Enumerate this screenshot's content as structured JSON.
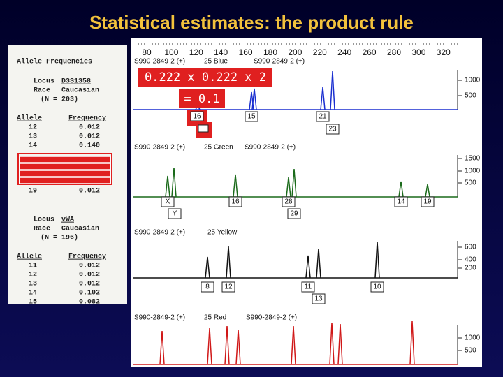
{
  "title": "Statistical estimates: the product rule",
  "frequency_table": {
    "heading": "Allele Frequencies",
    "loci": [
      {
        "locus_label": "Locus",
        "locus": "D3S1358",
        "race_label": "Race",
        "race": "Caucasian",
        "n": "(N = 203)",
        "columns": [
          "Allele",
          "Frequency"
        ],
        "rows": [
          [
            "12",
            "0.012"
          ],
          [
            "13",
            "0.012"
          ],
          [
            "14",
            "0.140"
          ],
          [
            "19",
            "0.012"
          ]
        ]
      },
      {
        "locus_label": "Locus",
        "locus": "vWA",
        "race_label": "Race",
        "race": "Caucasian",
        "n": "(N = 196)",
        "columns": [
          "Allele",
          "Frequency"
        ],
        "rows": [
          [
            "11",
            "0.012"
          ],
          [
            "12",
            "0.012"
          ],
          [
            "13",
            "0.012"
          ],
          [
            "14",
            "0.102"
          ],
          [
            "15",
            "0.082"
          ]
        ]
      }
    ]
  },
  "electropherogram": {
    "size_scale": [
      80,
      100,
      120,
      140,
      160,
      180,
      200,
      220,
      240,
      260,
      280,
      300,
      320
    ],
    "panels": [
      {
        "labels": [
          "S990-2849-2 (+)",
          "25 Blue",
          "S990-2849-2 (+)"
        ],
        "intensity_ticks": [
          1000,
          500
        ],
        "allele_calls": [
          "15",
          "21",
          "23"
        ]
      },
      {
        "labels": [
          "S990-2849-2 (+)",
          "25 Green",
          "S990-2849-2 (+)"
        ],
        "intensity_ticks": [
          1500,
          1000,
          500
        ],
        "allele_calls": [
          "X",
          "Y",
          "16",
          "28",
          "29",
          "14",
          "19"
        ]
      },
      {
        "labels": [
          "S990-2849-2 (+)",
          "25 Yellow"
        ],
        "intensity_ticks": [
          600,
          400,
          200
        ],
        "allele_calls": [
          "8",
          "12",
          "11",
          "13",
          "10"
        ]
      },
      {
        "labels": [
          "S990-2849-2 (+)",
          "25 Red",
          "S990-2849-2 (+)"
        ],
        "intensity_ticks": [
          1000,
          500
        ],
        "allele_calls": []
      }
    ]
  },
  "annotations": {
    "product": "0.222 x 0.222 x 2",
    "result": "= 0.1",
    "highlighted_call": "16"
  }
}
